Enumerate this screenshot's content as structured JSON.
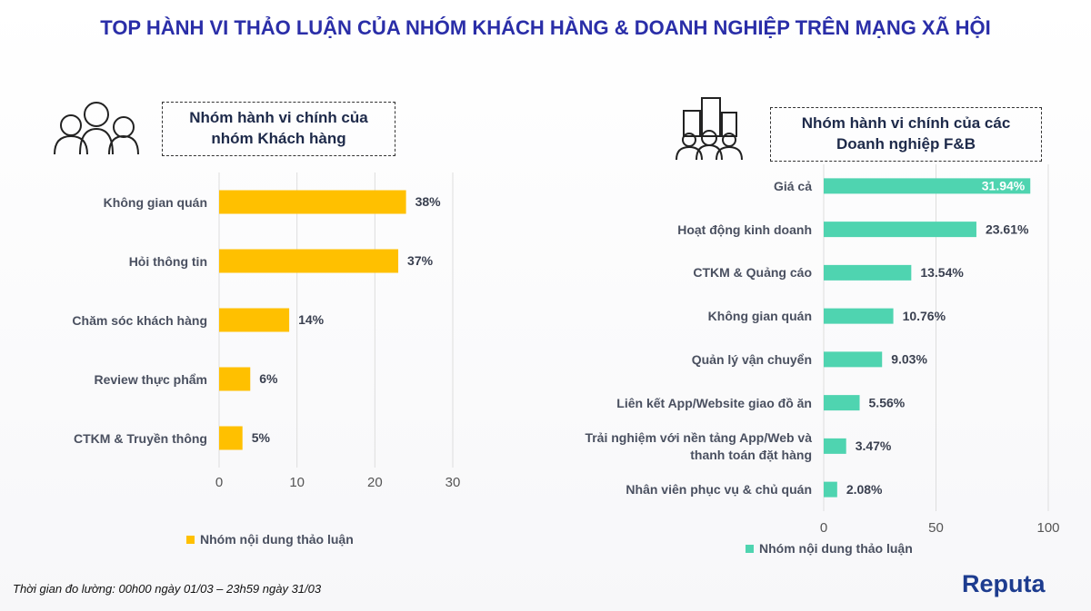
{
  "title": "TOP HÀNH VI THẢO LUẬN CỦA NHÓM KHÁCH HÀNG & DOANH NGHIỆP TRÊN MẠNG XÃ HỘI",
  "footer": "Thời gian đo lường: 00h00 ngày 01/03 – 23h59 ngày 31/03",
  "brand": "Reputa",
  "chart_data": [
    {
      "type": "hbar",
      "title": "Nhóm hành vi chính của nhóm Khách hàng",
      "categories": [
        "Không gian quán",
        "Hỏi thông tin",
        "Chăm sóc khách hàng",
        "Review thực phẩm",
        "CTKM & Truyền thông"
      ],
      "series": [
        {
          "name": "Nhóm nội dung thảo luận",
          "color": "#ffc000",
          "values": [
            24,
            23,
            9,
            4,
            3
          ],
          "value_labels": [
            "38%",
            "37%",
            "14%",
            "6%",
            "5%"
          ]
        }
      ],
      "xlim": [
        0,
        30
      ],
      "xticks": [
        0,
        10,
        20,
        30
      ],
      "grid": true
    },
    {
      "type": "hbar",
      "title": "Nhóm hành vi chính của các Doanh nghiệp F&B",
      "categories": [
        "Giá cả",
        "Hoạt động kinh doanh",
        "CTKM & Quảng cáo",
        "Không gian quán",
        "Quản lý vận chuyển",
        "Liên kết App/Website giao đồ ăn",
        "Trải nghiệm với nền tảng App/Web và thanh toán đặt hàng",
        "Nhân viên phục vụ & chủ quán"
      ],
      "series": [
        {
          "name": "Nhóm nội dung thảo luận",
          "color": "#4fd4b0",
          "values": [
            92,
            68,
            39,
            31,
            26,
            16,
            10,
            6
          ],
          "value_labels": [
            "31.94%",
            "23.61%",
            "13.54%",
            "10.76%",
            "9.03%",
            "5.56%",
            "3.47%",
            "2.08%"
          ]
        }
      ],
      "xlim": [
        0,
        100
      ],
      "xticks": [
        0,
        50,
        100
      ],
      "grid": true
    }
  ]
}
